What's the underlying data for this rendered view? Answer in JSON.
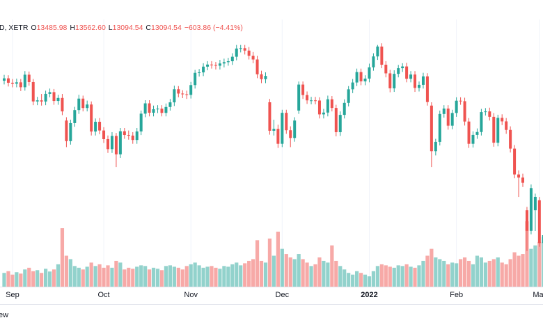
{
  "header": {
    "symbol": "D, XETR",
    "fields": [
      {
        "key": "O",
        "value": "13485.98"
      },
      {
        "key": "H",
        "value": "13562.60"
      },
      {
        "key": "L",
        "value": "13094.54"
      },
      {
        "key": "C",
        "value": "13094.54"
      }
    ],
    "change": "−603.86 (−4.41%)"
  },
  "footer": {
    "text": "ew"
  },
  "chart_data": {
    "type": "candlestick",
    "up_color": "#26a69a",
    "down_color": "#ef5350",
    "ylim": [
      13380,
      16580
    ],
    "vlim": [
      0,
      340
    ],
    "categories": [
      null,
      null,
      "Sep",
      null,
      null,
      null,
      null,
      null,
      null,
      null,
      null,
      null,
      null,
      null,
      null,
      null,
      null,
      null,
      null,
      null,
      null,
      null,
      null,
      null,
      "Oct",
      null,
      null,
      null,
      null,
      null,
      null,
      null,
      null,
      null,
      null,
      null,
      null,
      null,
      null,
      null,
      null,
      null,
      null,
      null,
      null,
      "Nov",
      null,
      null,
      null,
      null,
      null,
      null,
      null,
      null,
      null,
      null,
      null,
      null,
      null,
      null,
      null,
      null,
      null,
      null,
      null,
      null,
      null,
      "Dec",
      null,
      null,
      null,
      null,
      null,
      null,
      null,
      null,
      null,
      null,
      null,
      null,
      null,
      null,
      null,
      null,
      null,
      null,
      null,
      null,
      "2022",
      null,
      null,
      null,
      null,
      null,
      null,
      null,
      null,
      null,
      null,
      null,
      null,
      null,
      null,
      null,
      null,
      null,
      null,
      null,
      null,
      "Feb",
      null,
      null,
      null,
      null,
      null,
      null,
      null,
      null,
      null,
      null,
      null,
      null,
      null,
      null,
      null,
      null,
      null,
      null,
      null,
      "Mar",
      null,
      null,
      null
    ],
    "open": [
      15860,
      15888,
      15835,
      15824,
      15840,
      15781,
      15932,
      15843,
      15610,
      15623,
      15609,
      15701,
      15722,
      15616,
      15652,
      15380,
      15132,
      15349,
      15506,
      15644,
      15531,
      15573,
      15248,
      15365,
      15260,
      15156,
      15036,
      15195,
      14973,
      15251,
      15206,
      15199,
      15146,
      15249,
      15463,
      15587,
      15474,
      15516,
      15523,
      15472,
      15543,
      15599,
      15757,
      15705,
      15696,
      15689,
      15807,
      15954,
      15960,
      16029,
      16054,
      16048,
      16040,
      16067,
      16083,
      16094,
      16148,
      16247,
      16251,
      16222,
      16160,
      16115,
      15937,
      15878,
      15600,
      15257,
      15280,
      15100,
      15473,
      15263,
      15170,
      15500,
      15813,
      15687,
      15623,
      15623,
      15621,
      15454,
      15476,
      15636,
      15532,
      15240,
      15448,
      15593,
      15756,
      15838,
      15964,
      15852,
      15885,
      16021,
      16152,
      16271,
      16052,
      15948,
      15768,
      15942,
      16010,
      16031,
      15883,
      15934,
      15773,
      15810,
      15912,
      15560,
      15011,
      15123,
      15459,
      15524,
      15318,
      15471,
      15619,
      15613,
      15368,
      15100,
      15207,
      15242,
      15482,
      15490,
      15425,
      15113,
      15412,
      15370,
      15267,
      15042,
      14731,
      14693,
      14300,
      14052,
      14300,
      14420,
      13905,
      14000,
      13485.98
    ],
    "high": [
      15930,
      15925,
      15880,
      15885,
      15880,
      15975,
      15970,
      15880,
      15665,
      15700,
      15740,
      15765,
      15760,
      15690,
      15700,
      15420,
      15390,
      15545,
      15690,
      15680,
      15620,
      15610,
      15405,
      15410,
      15300,
      15200,
      15240,
      15230,
      15290,
      15290,
      15260,
      15240,
      15290,
      15500,
      15625,
      15625,
      15560,
      15565,
      15565,
      15585,
      15640,
      15800,
      15795,
      15745,
      15740,
      15845,
      15990,
      16000,
      16070,
      16095,
      16095,
      16085,
      16110,
      16125,
      16135,
      16190,
      16290,
      16290,
      16290,
      16265,
      16205,
      16160,
      15980,
      15960,
      15640,
      15390,
      15330,
      15510,
      15510,
      15310,
      15420,
      15850,
      15850,
      15730,
      15665,
      15665,
      15660,
      15520,
      15680,
      15675,
      15570,
      15490,
      15635,
      15795,
      15880,
      16005,
      16005,
      15925,
      16065,
      16190,
      16290,
      16310,
      16095,
      15990,
      15985,
      16050,
      16070,
      16075,
      15975,
      15975,
      15850,
      15955,
      15950,
      15600,
      15160,
      15500,
      15565,
      15565,
      15510,
      15660,
      15660,
      15655,
      15410,
      15250,
      15285,
      15520,
      15530,
      15535,
      15470,
      15450,
      15455,
      15410,
      15310,
      15085,
      14780,
      14740,
      14340,
      14610,
      14500,
      14460,
      14190,
      14040,
      13562.6
    ],
    "low": [
      15815,
      15790,
      15780,
      15780,
      15735,
      15740,
      15800,
      15565,
      15565,
      15560,
      15565,
      15660,
      15570,
      15570,
      15445,
      15060,
      15090,
      15305,
      15460,
      15490,
      15490,
      15200,
      15200,
      15215,
      15110,
      14990,
      14990,
      14820,
      14930,
      15160,
      15150,
      15100,
      15100,
      15205,
      15420,
      15430,
      15430,
      15470,
      15430,
      15430,
      15500,
      15555,
      15660,
      15650,
      15640,
      15645,
      15765,
      15910,
      15915,
      15985,
      16005,
      15995,
      15995,
      16020,
      16040,
      16050,
      16105,
      16200,
      16175,
      16115,
      16070,
      15890,
      15830,
      15830,
      15210,
      15200,
      15050,
      15060,
      15220,
      15060,
      15125,
      15460,
      15640,
      15580,
      15575,
      15575,
      15405,
      15405,
      15430,
      15490,
      15190,
      15195,
      15405,
      15550,
      15710,
      15795,
      15805,
      15805,
      15840,
      15980,
      16110,
      16010,
      15900,
      15720,
      15725,
      15900,
      15965,
      15840,
      15840,
      15725,
      15730,
      15765,
      15560,
      14820,
      14960,
      15080,
      15415,
      15270,
      15275,
      15425,
      15570,
      15320,
      15050,
      15055,
      15160,
      15200,
      15440,
      15380,
      15065,
      15070,
      15325,
      15220,
      14995,
      14685,
      14460,
      14580,
      13810,
      14010,
      14050,
      13860,
      13780,
      13650,
      13094.54
    ],
    "close": [
      15888,
      15835,
      15824,
      15840,
      15781,
      15932,
      15843,
      15610,
      15623,
      15609,
      15701,
      15722,
      15616,
      15652,
      15490,
      15132,
      15349,
      15506,
      15644,
      15531,
      15573,
      15248,
      15365,
      15260,
      15156,
      15036,
      15195,
      14973,
      15251,
      15206,
      15199,
      15146,
      15249,
      15463,
      15587,
      15474,
      15516,
      15523,
      15472,
      15543,
      15599,
      15757,
      15705,
      15696,
      15689,
      15807,
      15954,
      15960,
      16029,
      16054,
      16048,
      16040,
      16067,
      16083,
      16094,
      16148,
      16247,
      16251,
      16222,
      16160,
      16115,
      15937,
      15878,
      15917,
      15257,
      15280,
      15100,
      15473,
      15263,
      15170,
      15380,
      15813,
      15687,
      15623,
      15623,
      15621,
      15454,
      15476,
      15636,
      15532,
      15240,
      15448,
      15593,
      15756,
      15838,
      15964,
      15852,
      15885,
      16021,
      16152,
      16271,
      16052,
      15948,
      15768,
      15942,
      16010,
      16031,
      15883,
      15934,
      15773,
      15810,
      15912,
      15603,
      15011,
      15123,
      15459,
      15524,
      15318,
      15471,
      15619,
      15613,
      15368,
      15100,
      15207,
      15242,
      15482,
      15490,
      15425,
      15113,
      15412,
      15370,
      15267,
      15042,
      14731,
      14693,
      14631,
      14052,
      14567,
      14461,
      13905,
      14000,
      13698,
      13094.54
    ],
    "volume": [
      40,
      45,
      35,
      42,
      38,
      50,
      55,
      45,
      48,
      40,
      52,
      44,
      50,
      65,
      170,
      90,
      80,
      60,
      55,
      50,
      58,
      70,
      60,
      65,
      55,
      62,
      55,
      75,
      70,
      50,
      55,
      52,
      58,
      62,
      60,
      50,
      55,
      52,
      48,
      60,
      62,
      58,
      55,
      50,
      60,
      65,
      70,
      62,
      55,
      58,
      60,
      55,
      52,
      60,
      58,
      65,
      70,
      62,
      68,
      75,
      80,
      135,
      75,
      70,
      140,
      90,
      160,
      110,
      95,
      85,
      80,
      95,
      80,
      70,
      60,
      65,
      85,
      75,
      70,
      120,
      75,
      60,
      50,
      40,
      35,
      45,
      40,
      35,
      30,
      45,
      60,
      65,
      62,
      58,
      55,
      62,
      60,
      65,
      58,
      55,
      62,
      75,
      90,
      110,
      85,
      80,
      75,
      65,
      70,
      68,
      80,
      85,
      75,
      65,
      90,
      85,
      70,
      75,
      80,
      85,
      70,
      65,
      80,
      100,
      90,
      95,
      190,
      110,
      120,
      130,
      145,
      120,
      110
    ]
  }
}
